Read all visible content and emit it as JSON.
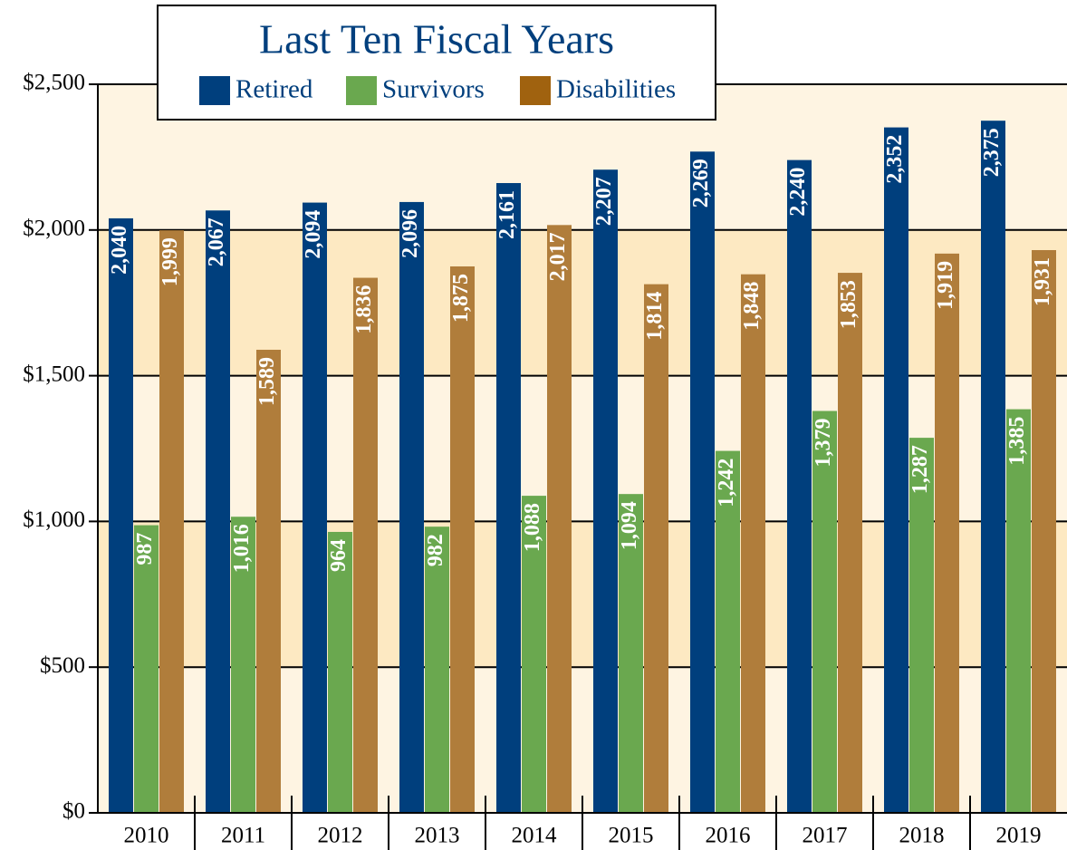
{
  "chart_data": {
    "type": "bar",
    "title": "Last Ten Fiscal Years",
    "categories": [
      "2010",
      "2011",
      "2012",
      "2013",
      "2014",
      "2015",
      "2016",
      "2017",
      "2018",
      "2019"
    ],
    "series": [
      {
        "name": "Retired",
        "color": "#003f7d",
        "values": [
          2040,
          2067,
          2094,
          2096,
          2161,
          2207,
          2269,
          2240,
          2352,
          2375
        ],
        "value_labels": [
          "2,040",
          "2,067",
          "2,094",
          "2,096",
          "2,161",
          "2,207",
          "2,269",
          "2,240",
          "2,352",
          "2,375"
        ]
      },
      {
        "name": "Survivors",
        "color": "#6aa84f",
        "values": [
          987,
          1016,
          964,
          982,
          1088,
          1094,
          1242,
          1379,
          1287,
          1385
        ],
        "value_labels": [
          "987",
          "1,016",
          "964",
          "982",
          "1,088",
          "1,094",
          "1,242",
          "1,379",
          "1,287",
          "1,385"
        ]
      },
      {
        "name": "Disabilities",
        "color": "#b07d3b",
        "values": [
          1999,
          1589,
          1836,
          1875,
          2017,
          1814,
          1848,
          1853,
          1919,
          1931
        ],
        "value_labels": [
          "1,999",
          "1,589",
          "1,836",
          "1,875",
          "2,017",
          "1,814",
          "1,848",
          "1,853",
          "1,919",
          "1,931"
        ]
      }
    ],
    "ylim": [
      0,
      2500
    ],
    "yticks": [
      {
        "value": 0,
        "label": "$0"
      },
      {
        "value": 500,
        "label": "$500"
      },
      {
        "value": 1000,
        "label": "$1,000"
      },
      {
        "value": 1500,
        "label": "$1,500"
      },
      {
        "value": 2000,
        "label": "$2,000"
      },
      {
        "value": 2500,
        "label": "$2,500"
      }
    ],
    "grid": true
  }
}
